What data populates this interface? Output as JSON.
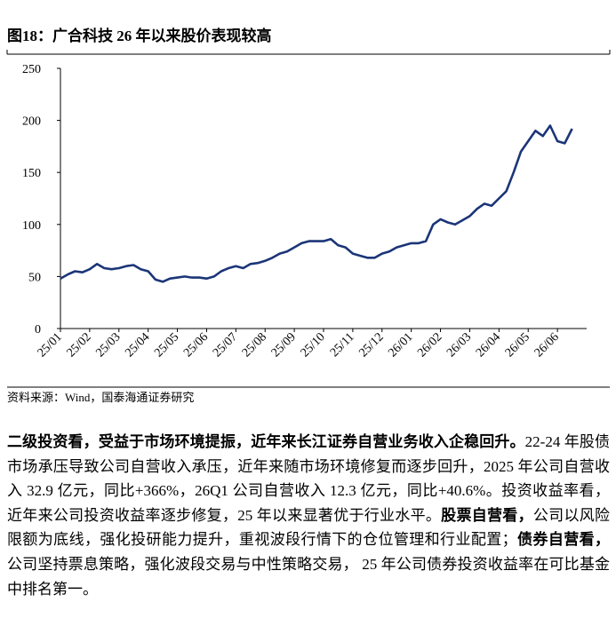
{
  "chart_data": {
    "type": "line",
    "title": "图18：广合科技 26 年以来股价表现较高",
    "x": [
      0,
      0.25,
      0.5,
      0.75,
      1,
      1.25,
      1.5,
      1.75,
      2,
      2.25,
      2.5,
      2.75,
      3,
      3.25,
      3.5,
      3.75,
      4,
      4.25,
      4.5,
      4.75,
      5,
      5.25,
      5.5,
      5.75,
      6,
      6.25,
      6.5,
      6.75,
      7,
      7.25,
      7.5,
      7.75,
      8,
      8.25,
      8.5,
      8.75,
      9,
      9.25,
      9.5,
      9.75,
      10,
      10.25,
      10.5,
      10.75,
      11,
      11.25,
      11.5,
      11.75,
      12,
      12.25,
      12.5,
      12.75,
      13,
      13.25,
      13.5,
      13.75,
      14,
      14.25,
      14.5,
      14.75,
      15,
      15.25,
      15.5,
      15.75,
      16,
      16.25,
      16.5,
      16.75,
      17,
      17.25,
      17.5
    ],
    "values": [
      48,
      52,
      55,
      54,
      57,
      62,
      58,
      57,
      58,
      60,
      61,
      57,
      55,
      47,
      45,
      48,
      49,
      50,
      49,
      49,
      48,
      50,
      55,
      58,
      60,
      58,
      62,
      63,
      65,
      68,
      72,
      74,
      78,
      82,
      84,
      84,
      84,
      86,
      80,
      78,
      72,
      70,
      68,
      68,
      72,
      74,
      78,
      80,
      82,
      82,
      84,
      100,
      105,
      102,
      100,
      104,
      108,
      115,
      120,
      118,
      125,
      132,
      150,
      170,
      180,
      190,
      185,
      195,
      180,
      178,
      192
    ],
    "color": "#1b3578",
    "xlim": [
      0,
      18
    ],
    "xticks": [
      {
        "value": 0,
        "label": "25/01"
      },
      {
        "value": 1,
        "label": "25/02"
      },
      {
        "value": 2,
        "label": "25/03"
      },
      {
        "value": 3,
        "label": "25/04"
      },
      {
        "value": 4,
        "label": "25/05"
      },
      {
        "value": 5,
        "label": "25/06"
      },
      {
        "value": 6,
        "label": "25/07"
      },
      {
        "value": 7,
        "label": "25/08"
      },
      {
        "value": 8,
        "label": "25/09"
      },
      {
        "value": 9,
        "label": "25/10"
      },
      {
        "value": 10,
        "label": "25/11"
      },
      {
        "value": 11,
        "label": "25/12"
      },
      {
        "value": 12,
        "label": "26/01"
      },
      {
        "value": 13,
        "label": "26/02"
      },
      {
        "value": 14,
        "label": "26/03"
      },
      {
        "value": 15,
        "label": "26/04"
      },
      {
        "value": 16,
        "label": "26/05"
      },
      {
        "value": 17,
        "label": "26/06"
      }
    ],
    "ylim": [
      0,
      250
    ],
    "yticks": [
      0,
      50,
      100,
      150,
      200,
      250
    ]
  },
  "document": {
    "source": "资料来源：Wind，国泰海通证券研究",
    "paragraph": [
      {
        "text": "二级投资看，受益于市场环境提振，近年来长江证券自营业务收入企稳回升。",
        "bold": true
      },
      {
        "text": "22-24 年股债市场承压导致公司自营收入承压，近年来随市场环境修复而逐步回升，2025 年公司自营收入 32.9 亿元，同比+366%，26Q1 公司自营收入 12.3 亿元，同比+40.6%。投资收益率看，近年来公司投资收益率逐步修复，25 年以来显著优于行业水平。",
        "bold": false
      },
      {
        "text": "股票自营看，",
        "bold": true
      },
      {
        "text": "公司以风险限额为底线，强化投研能力提升，重视波段行情下的仓位管理和行业配置；",
        "bold": false
      },
      {
        "text": "债券自营看，",
        "bold": true
      },
      {
        "text": "公司坚持票息策略，强化波段交易与中性策略交易， 25 年公司债券投资收益率在可比基金中排名第一。",
        "bold": false
      }
    ]
  }
}
